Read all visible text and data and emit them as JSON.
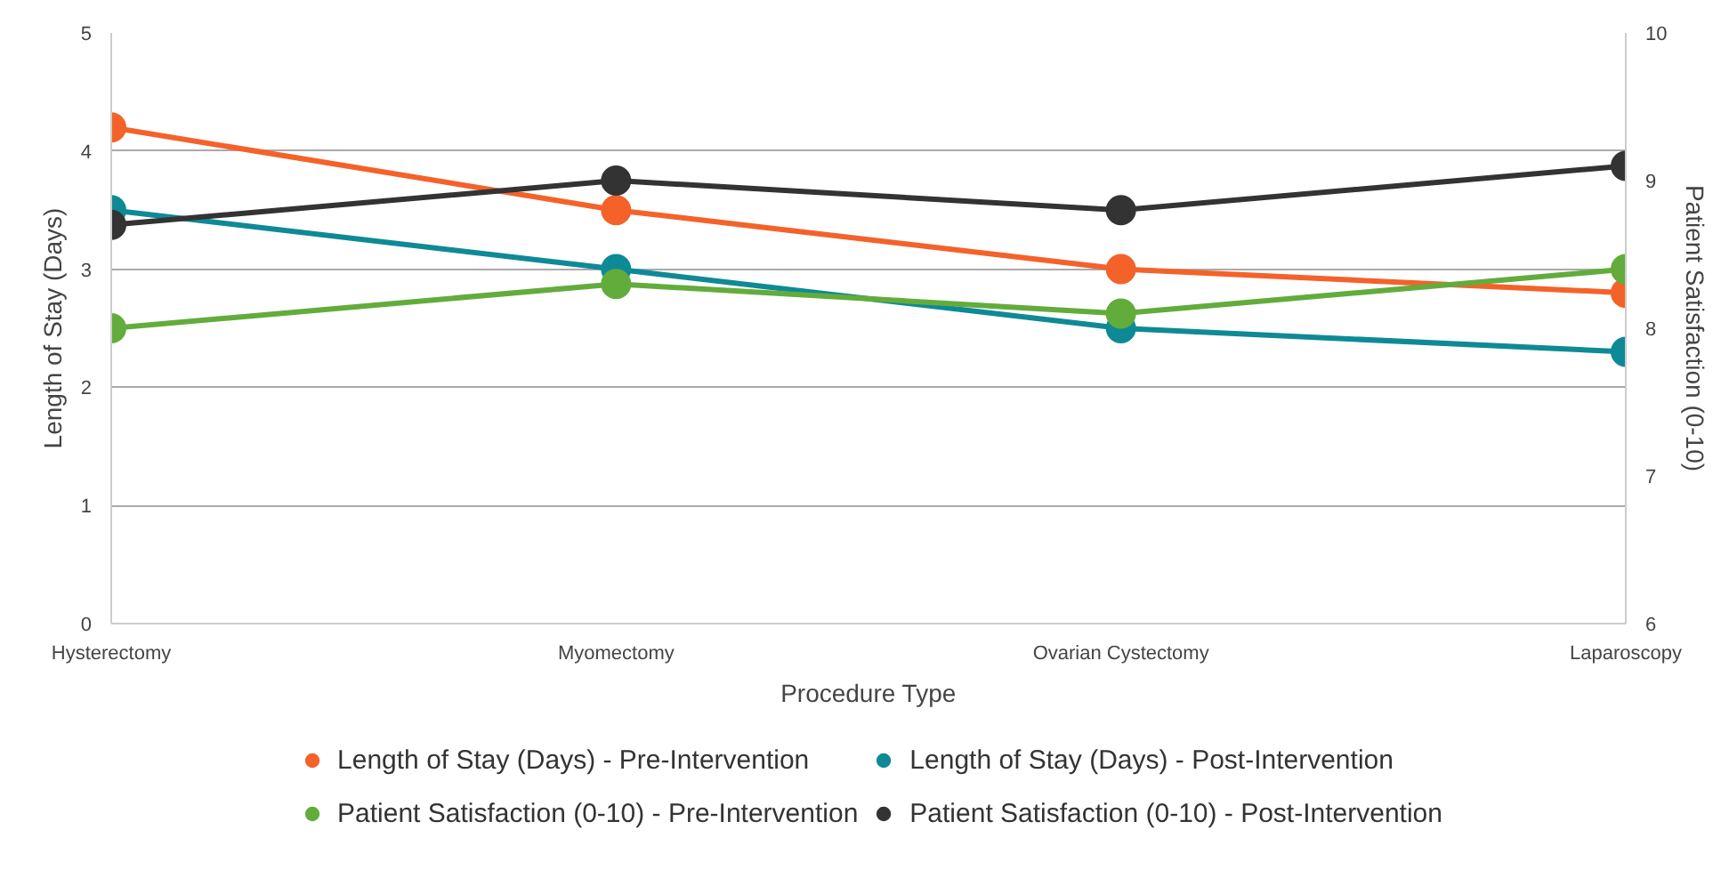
{
  "chart_data": {
    "type": "line",
    "xlabel": "Procedure Type",
    "ylabel": "Length of Stay (Days)",
    "y2label": "Patient Satisfaction (0-10)",
    "categories": [
      "Hysterectomy",
      "Myomectomy",
      "Ovarian Cystectomy",
      "Laparoscopy"
    ],
    "series": [
      {
        "name": "Length of Stay (Days) - Pre-Intervention",
        "color": "#f4622a",
        "values": [
          4.2,
          3.5,
          3.0,
          2.8
        ]
      },
      {
        "name": "Length of Stay (Days) - Post-Intervention",
        "color": "#0e8a96",
        "values": [
          3.5,
          3.0,
          2.5,
          2.3
        ]
      },
      {
        "name": "Patient Satisfaction (0-10) - Pre-Intervention",
        "color": "#62ac3c",
        "values": [
          8.0,
          8.3,
          8.1,
          8.4
        ],
        "axis": "y2"
      },
      {
        "name": "Patient Satisfaction (0-10) - Post-Intervention",
        "color": "#333333",
        "values": [
          8.7,
          9.0,
          8.8,
          9.1
        ],
        "axis": "y2"
      }
    ],
    "ylim": [
      0,
      5
    ],
    "yticks": [
      0,
      1,
      2,
      3,
      4,
      5
    ],
    "y2lim": [
      6,
      10
    ],
    "y2ticks": [
      6,
      7,
      8,
      9,
      10
    ],
    "grid": "y",
    "legend": "bottom",
    "marker": "circle",
    "line_style": "solid"
  }
}
